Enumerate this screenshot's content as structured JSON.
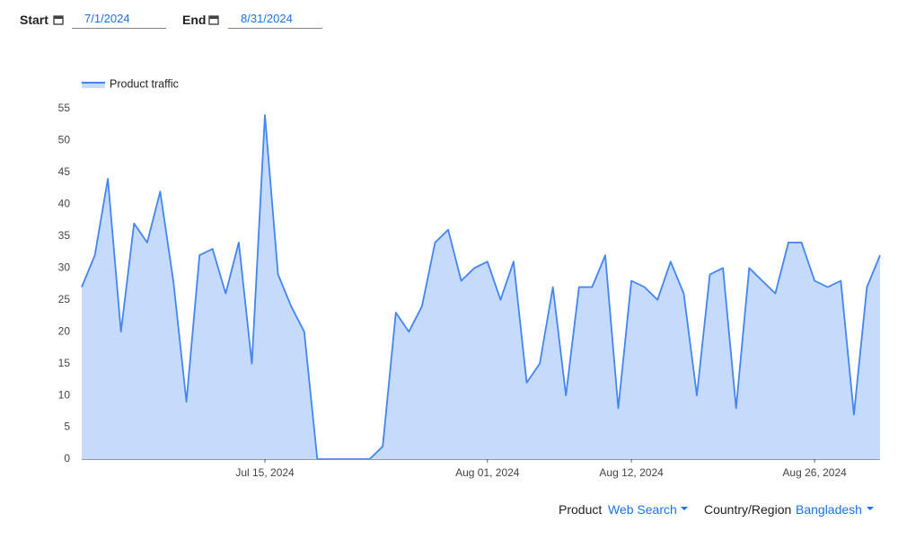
{
  "filters": {
    "start_label": "Start",
    "start_date": "7/1/2024",
    "end_label": "End",
    "end_date": "8/31/2024",
    "product_label": "Product",
    "product_value": "Web Search",
    "region_label": "Country/Region",
    "region_value": "Bangladesh"
  },
  "chart_data": {
    "type": "area",
    "ylim": [
      0,
      55
    ],
    "yticks": [
      0,
      5,
      10,
      15,
      20,
      25,
      30,
      35,
      40,
      45,
      50,
      55
    ],
    "xticks": [
      "Jul 15, 2024",
      "Aug 01, 2024",
      "Aug 12, 2024",
      "Aug 26, 2024"
    ],
    "legend": "top-left",
    "x": [
      "Jul 01, 2024",
      "Jul 02, 2024",
      "Jul 03, 2024",
      "Jul 04, 2024",
      "Jul 05, 2024",
      "Jul 06, 2024",
      "Jul 07, 2024",
      "Jul 08, 2024",
      "Jul 09, 2024",
      "Jul 10, 2024",
      "Jul 11, 2024",
      "Jul 12, 2024",
      "Jul 13, 2024",
      "Jul 14, 2024",
      "Jul 15, 2024",
      "Jul 16, 2024",
      "Jul 17, 2024",
      "Jul 18, 2024",
      "Jul 19, 2024",
      "Jul 20, 2024",
      "Jul 21, 2024",
      "Jul 22, 2024",
      "Jul 23, 2024",
      "Jul 24, 2024",
      "Jul 25, 2024",
      "Jul 26, 2024",
      "Jul 27, 2024",
      "Jul 28, 2024",
      "Jul 29, 2024",
      "Jul 30, 2024",
      "Jul 31, 2024",
      "Aug 01, 2024",
      "Aug 02, 2024",
      "Aug 03, 2024",
      "Aug 04, 2024",
      "Aug 05, 2024",
      "Aug 06, 2024",
      "Aug 07, 2024",
      "Aug 08, 2024",
      "Aug 09, 2024",
      "Aug 10, 2024",
      "Aug 11, 2024",
      "Aug 12, 2024",
      "Aug 13, 2024",
      "Aug 14, 2024",
      "Aug 15, 2024",
      "Aug 16, 2024",
      "Aug 17, 2024",
      "Aug 18, 2024",
      "Aug 19, 2024",
      "Aug 20, 2024",
      "Aug 21, 2024",
      "Aug 22, 2024",
      "Aug 23, 2024",
      "Aug 24, 2024",
      "Aug 25, 2024",
      "Aug 26, 2024",
      "Aug 27, 2024",
      "Aug 28, 2024",
      "Aug 29, 2024",
      "Aug 30, 2024",
      "Aug 31, 2024"
    ],
    "series": [
      {
        "name": "Product traffic",
        "color": "#4285f4",
        "fill": "#c6dafc",
        "values": [
          27,
          32,
          44,
          20,
          37,
          34,
          42,
          28,
          9,
          32,
          33,
          26,
          34,
          15,
          54,
          29,
          24,
          20,
          0,
          0,
          0,
          0,
          0,
          2,
          23,
          20,
          24,
          34,
          36,
          28,
          30,
          31,
          25,
          31,
          12,
          15,
          27,
          10,
          27,
          27,
          32,
          8,
          28,
          27,
          25,
          31,
          26,
          10,
          29,
          30,
          8,
          30,
          28,
          26,
          34,
          34,
          28,
          27,
          28,
          7,
          27,
          32
        ]
      }
    ]
  }
}
